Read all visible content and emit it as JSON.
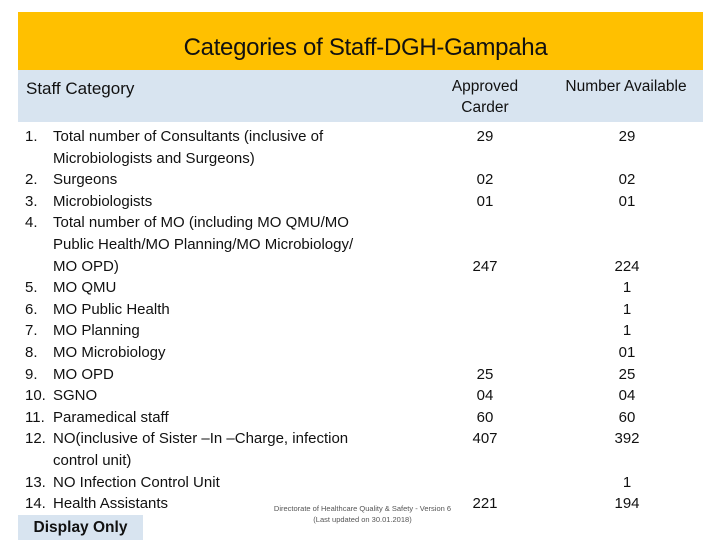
{
  "title": "Categories of Staff-DGH-Gampaha",
  "headers": {
    "category": "Staff Category",
    "approved": "Approved Carder",
    "available": "Number Available"
  },
  "rows": [
    {
      "num": "1.",
      "text": "Total number of Consultants (inclusive of",
      "approved": "29",
      "available": "29"
    },
    {
      "num": "",
      "text": "Microbiologists and Surgeons)",
      "approved": "",
      "available": ""
    },
    {
      "num": "2.",
      "text": "Surgeons",
      "approved": "02",
      "available": "02"
    },
    {
      "num": "3.",
      "text": "Microbiologists",
      "approved": "01",
      "available": "01"
    },
    {
      "num": "4.",
      "text": "Total number of MO (including MO QMU/MO",
      "approved": "",
      "available": ""
    },
    {
      "num": "",
      "text": "Public Health/MO Planning/MO Microbiology/",
      "approved": "",
      "available": ""
    },
    {
      "num": "",
      "text": "MO OPD)",
      "approved": "247",
      "available": "224"
    },
    {
      "num": "5.",
      "text": "MO QMU",
      "approved": "",
      "available": "1"
    },
    {
      "num": "6.",
      "text": "MO Public Health",
      "approved": "",
      "available": "1"
    },
    {
      "num": "7.",
      "text": "MO Planning",
      "approved": "",
      "available": "1"
    },
    {
      "num": "8.",
      "text": "MO Microbiology",
      "approved": "",
      "available": "01"
    },
    {
      "num": "9.",
      "text": "MO OPD",
      "approved": "25",
      "available": "25"
    },
    {
      "num": "10.",
      "text": "SGNO",
      "approved": "04",
      "available": "04"
    },
    {
      "num": "11.",
      "text": "Paramedical staff",
      "approved": "60",
      "available": "60"
    },
    {
      "num": "12.",
      "text": "NO(inclusive of Sister –In –Charge, infection",
      "approved": "407",
      "available": "392"
    },
    {
      "num": "",
      "text": "control unit)",
      "approved": "",
      "available": ""
    },
    {
      "num": "13.",
      "text": "NO Infection Control Unit",
      "approved": "",
      "available": "1"
    },
    {
      "num": "14.",
      "text": "Health Assistants",
      "approved": "221",
      "available": "194"
    }
  ],
  "footer": {
    "line1": "Directorate of Healthcare Quality & Safety - Version 6",
    "line2": "(Last updated on 30.01.2018)"
  },
  "badge": "Display Only",
  "colors": {
    "title_bg": "#ffc000",
    "header_bg": "#d8e4f0"
  }
}
